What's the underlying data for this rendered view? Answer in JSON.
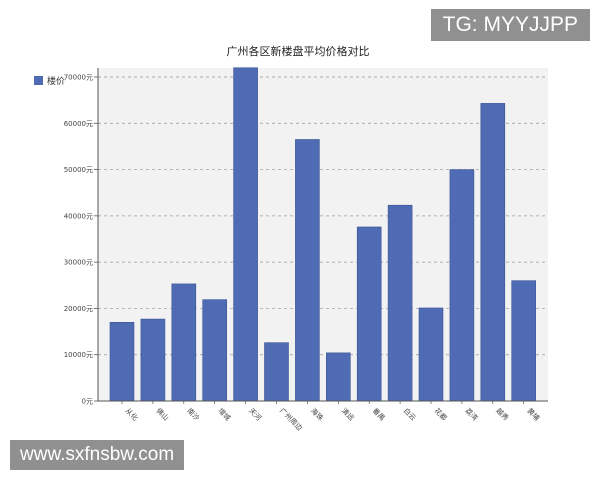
{
  "watermarks": {
    "top": "TG: MYYJJPP",
    "bottom": "www.sxfnsbw.com"
  },
  "chart_data": {
    "type": "bar",
    "title": "广州各区新楼盘平均价格对比",
    "xlabel": "",
    "ylabel": "",
    "categories": [
      "从化",
      "佛山",
      "南沙",
      "增城",
      "天河",
      "广州周边",
      "海珠",
      "清远",
      "番禺",
      "白云",
      "花都",
      "荔湾",
      "越秀",
      "黄埔"
    ],
    "series": [
      {
        "name": "楼价",
        "values": [
          17000,
          17700,
          25300,
          21900,
          72000,
          12600,
          56500,
          10400,
          37600,
          42300,
          20100,
          50000,
          64300,
          26000
        ]
      }
    ],
    "y_ticks": [
      "0元",
      "10000元",
      "20000元",
      "30000元",
      "40000元",
      "50000元",
      "60000元",
      "70000元"
    ],
    "ylim": [
      0,
      70000
    ],
    "grid": "horizontal dashed",
    "legend_position": "top-left",
    "colors": {
      "bar": "#4f6bb3",
      "bar_edge": "#3d5596",
      "plot_bg": "#f2f2f2",
      "grid": "#999999"
    }
  }
}
